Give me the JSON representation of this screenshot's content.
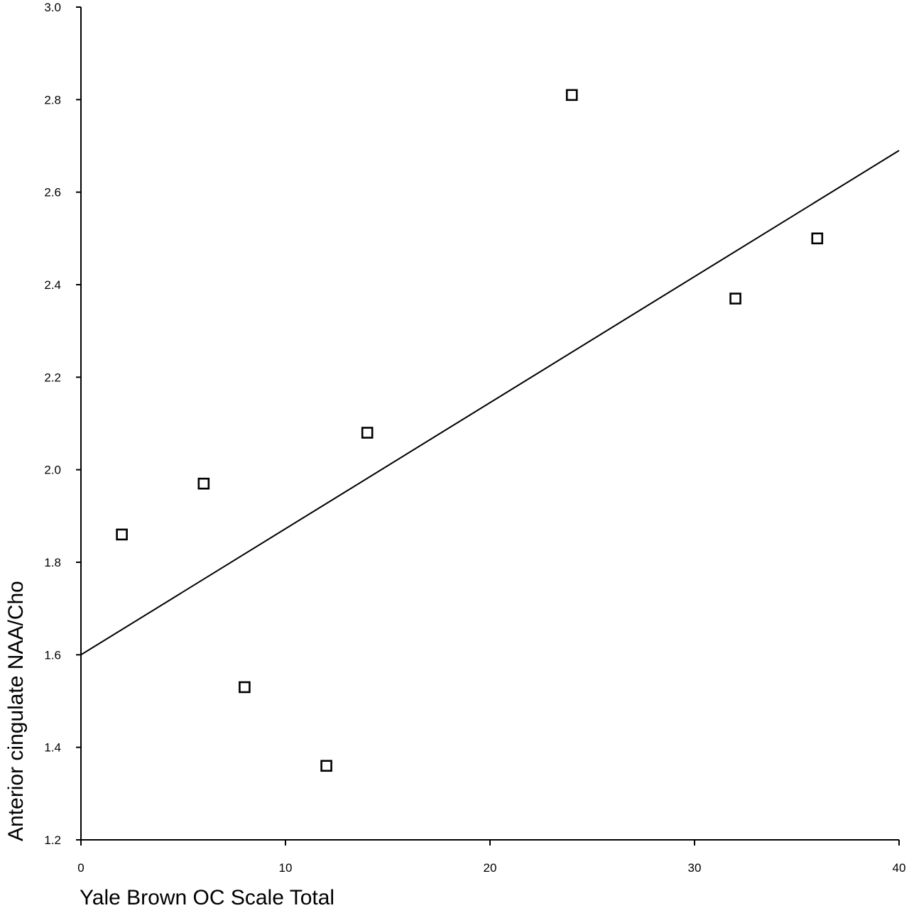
{
  "chart_data": {
    "type": "scatter",
    "title": "",
    "xlabel": "Yale Brown OC Scale Total",
    "ylabel": "Anterior cingulate NAA/Cho",
    "xlim": [
      0,
      40
    ],
    "ylim": [
      1.2,
      3.0
    ],
    "x_ticks": [
      "0",
      "10",
      "20",
      "30",
      "40"
    ],
    "y_ticks": [
      "1.2",
      "1.4",
      "1.6",
      "1.8",
      "2.0",
      "2.2",
      "2.4",
      "2.6",
      "2.8",
      "3.0"
    ],
    "grid": false,
    "marker": "open-square",
    "points": [
      {
        "x": 2,
        "y": 1.86
      },
      {
        "x": 6,
        "y": 1.97
      },
      {
        "x": 8,
        "y": 1.53
      },
      {
        "x": 12,
        "y": 1.36
      },
      {
        "x": 14,
        "y": 2.08
      },
      {
        "x": 24,
        "y": 2.81
      },
      {
        "x": 32,
        "y": 2.37
      },
      {
        "x": 36,
        "y": 2.5
      }
    ],
    "fit_line": {
      "x": [
        0,
        40
      ],
      "y": [
        1.6,
        2.69
      ]
    }
  }
}
